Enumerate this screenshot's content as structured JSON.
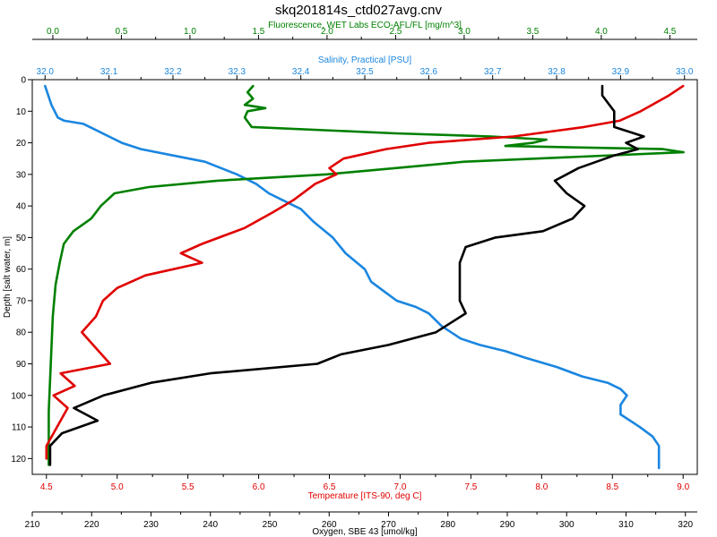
{
  "chart_data": {
    "type": "line",
    "title": "skq201814s_ctd027avg.cnv",
    "grid": false,
    "legend": "none",
    "y_axis": {
      "label": "Depth [salt water, m]",
      "range": [
        0,
        125
      ],
      "inverted": true,
      "ticks": [
        "0",
        "10",
        "20",
        "30",
        "40",
        "50",
        "60",
        "70",
        "80",
        "90",
        "100",
        "110",
        "120"
      ]
    },
    "x_axes": [
      {
        "id": "fluorescence",
        "label": "Fluorescence, WET Labs ECO-AFL/FL [mg/m^3]",
        "color": "#008000",
        "position": "top-outer",
        "range": [
          -0.15,
          4.7
        ],
        "ticks": [
          "0.0",
          "0.5",
          "1.0",
          "1.5",
          "2.0",
          "2.5",
          "3.0",
          "3.5",
          "4.0",
          "4.5"
        ]
      },
      {
        "id": "salinity",
        "label": "Salinity, Practical [PSU]",
        "color": "#1a86e0",
        "position": "top-inner",
        "range": [
          31.98,
          33.02
        ],
        "ticks": [
          "32.0",
          "32.1",
          "32.2",
          "32.3",
          "32.4",
          "32.5",
          "32.6",
          "32.7",
          "32.8",
          "32.9",
          "33.0"
        ]
      },
      {
        "id": "temperature",
        "label": "Temperature [ITS-90, deg C]",
        "color": "#e00000",
        "position": "bottom-inner",
        "range": [
          4.4,
          9.1
        ],
        "ticks": [
          "4.5",
          "5.0",
          "5.5",
          "6.0",
          "6.5",
          "7.0",
          "7.5",
          "8.0",
          "8.5",
          "9.0"
        ]
      },
      {
        "id": "oxygen",
        "label": "Oxygen, SBE 43 [umol/kg]",
        "color": "#000000",
        "position": "bottom-outer",
        "range": [
          210,
          322
        ],
        "ticks": [
          "210",
          "220",
          "230",
          "240",
          "250",
          "260",
          "270",
          "280",
          "290",
          "300",
          "310",
          "320"
        ]
      }
    ],
    "series": [
      {
        "axis": "salinity",
        "color": "#1a86e0",
        "points": [
          [
            32.0,
            2
          ],
          [
            32.01,
            8
          ],
          [
            32.02,
            12
          ],
          [
            32.03,
            13
          ],
          [
            32.06,
            14
          ],
          [
            32.08,
            16
          ],
          [
            32.1,
            18
          ],
          [
            32.12,
            20
          ],
          [
            32.15,
            22
          ],
          [
            32.2,
            24
          ],
          [
            32.25,
            26
          ],
          [
            32.3,
            30
          ],
          [
            32.33,
            33
          ],
          [
            32.35,
            36
          ],
          [
            32.37,
            38
          ],
          [
            32.4,
            41
          ],
          [
            32.42,
            45
          ],
          [
            32.45,
            50
          ],
          [
            32.47,
            55
          ],
          [
            32.5,
            60
          ],
          [
            32.51,
            64
          ],
          [
            32.53,
            67
          ],
          [
            32.55,
            70
          ],
          [
            32.58,
            72
          ],
          [
            32.6,
            74
          ],
          [
            32.62,
            78
          ],
          [
            32.65,
            82
          ],
          [
            32.68,
            84
          ],
          [
            32.72,
            86
          ],
          [
            32.75,
            88
          ],
          [
            32.8,
            91
          ],
          [
            32.84,
            94
          ],
          [
            32.88,
            96
          ],
          [
            32.9,
            98
          ],
          [
            32.91,
            100
          ],
          [
            32.9,
            103
          ],
          [
            32.9,
            106
          ],
          [
            32.93,
            110
          ],
          [
            32.95,
            113
          ],
          [
            32.96,
            116
          ],
          [
            32.96,
            120
          ],
          [
            32.96,
            123
          ]
        ]
      },
      {
        "axis": "fluorescence",
        "color": "#008000",
        "points": [
          [
            1.46,
            2
          ],
          [
            1.42,
            4
          ],
          [
            1.46,
            6
          ],
          [
            1.4,
            8
          ],
          [
            1.55,
            9
          ],
          [
            1.42,
            10
          ],
          [
            1.4,
            12
          ],
          [
            1.45,
            15
          ],
          [
            2.5,
            17
          ],
          [
            3.2,
            18
          ],
          [
            3.6,
            19
          ],
          [
            3.5,
            20
          ],
          [
            3.3,
            21
          ],
          [
            4.45,
            22
          ],
          [
            4.6,
            23
          ],
          [
            3.0,
            26
          ],
          [
            2.5,
            28
          ],
          [
            2.0,
            30
          ],
          [
            1.2,
            32
          ],
          [
            0.7,
            34
          ],
          [
            0.45,
            36
          ],
          [
            0.35,
            40
          ],
          [
            0.28,
            44
          ],
          [
            0.15,
            48
          ],
          [
            0.08,
            52
          ],
          [
            0.05,
            58
          ],
          [
            0.02,
            65
          ],
          [
            0.0,
            75
          ],
          [
            -0.01,
            85
          ],
          [
            -0.02,
            95
          ],
          [
            -0.03,
            105
          ],
          [
            -0.03,
            115
          ],
          [
            -0.03,
            122
          ]
        ]
      },
      {
        "axis": "temperature",
        "color": "#e00000",
        "points": [
          [
            9.0,
            2
          ],
          [
            8.9,
            5
          ],
          [
            8.7,
            10
          ],
          [
            8.55,
            13
          ],
          [
            8.3,
            15
          ],
          [
            7.8,
            18
          ],
          [
            7.2,
            20
          ],
          [
            6.9,
            22
          ],
          [
            6.6,
            25
          ],
          [
            6.5,
            28
          ],
          [
            6.55,
            30
          ],
          [
            6.4,
            33
          ],
          [
            6.25,
            38
          ],
          [
            6.1,
            42
          ],
          [
            5.9,
            47
          ],
          [
            5.6,
            52
          ],
          [
            5.45,
            55
          ],
          [
            5.6,
            58
          ],
          [
            5.2,
            62
          ],
          [
            5.0,
            66
          ],
          [
            4.9,
            70
          ],
          [
            4.85,
            75
          ],
          [
            4.75,
            80
          ],
          [
            4.85,
            85
          ],
          [
            4.95,
            90
          ],
          [
            4.6,
            93
          ],
          [
            4.7,
            97
          ],
          [
            4.55,
            100
          ],
          [
            4.65,
            104
          ],
          [
            4.6,
            108
          ],
          [
            4.55,
            112
          ],
          [
            4.5,
            116
          ],
          [
            4.5,
            120
          ]
        ]
      },
      {
        "axis": "oxygen",
        "color": "#000000",
        "points": [
          [
            306,
            2
          ],
          [
            306,
            5
          ],
          [
            308,
            10
          ],
          [
            308,
            15
          ],
          [
            313,
            18
          ],
          [
            310,
            20
          ],
          [
            312,
            22
          ],
          [
            308,
            24
          ],
          [
            302,
            28
          ],
          [
            298,
            32
          ],
          [
            300,
            36
          ],
          [
            303,
            40
          ],
          [
            301,
            44
          ],
          [
            296,
            48
          ],
          [
            288,
            50
          ],
          [
            283,
            53
          ],
          [
            282,
            58
          ],
          [
            282,
            63
          ],
          [
            282,
            70
          ],
          [
            283,
            74
          ],
          [
            278,
            80
          ],
          [
            270,
            84
          ],
          [
            262,
            87
          ],
          [
            258,
            90
          ],
          [
            240,
            93
          ],
          [
            230,
            96
          ],
          [
            222,
            100
          ],
          [
            217,
            104
          ],
          [
            221,
            108
          ],
          [
            215,
            112
          ],
          [
            213,
            116
          ],
          [
            213,
            120
          ],
          [
            213,
            122
          ]
        ]
      }
    ]
  }
}
